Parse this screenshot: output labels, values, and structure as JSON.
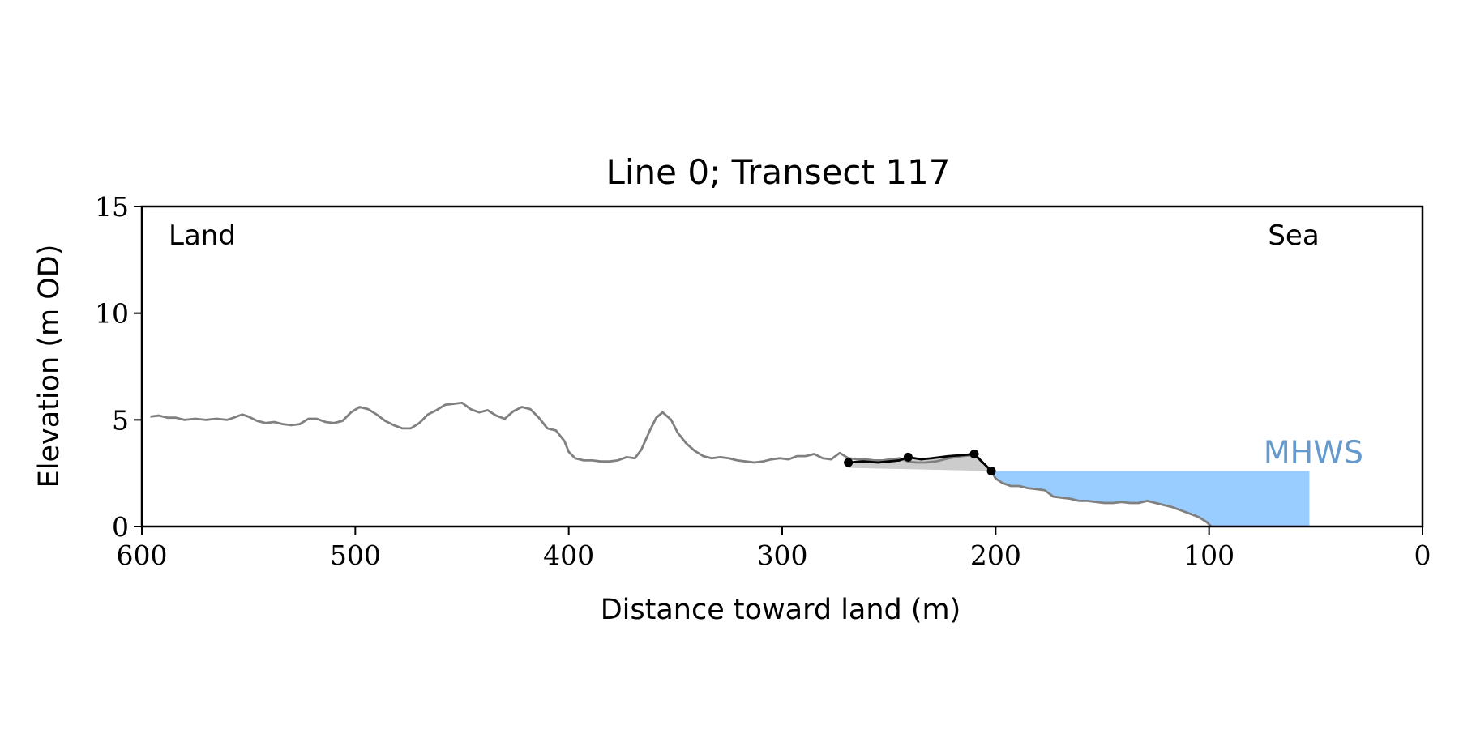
{
  "chart_data": {
    "type": "line",
    "title": "Line 0; Transect 117",
    "xlabel": "Distance toward land (m)",
    "ylabel": "Elevation (m OD)",
    "xlim": [
      600,
      0
    ],
    "ylim": [
      0,
      15
    ],
    "xticks": [
      "600",
      "500",
      "400",
      "300",
      "200",
      "100",
      "0"
    ],
    "yticks": [
      "0",
      "5",
      "10",
      "15"
    ],
    "grid": false,
    "annotations": {
      "land": "Land",
      "sea": "Sea",
      "mhws": "MHWS"
    },
    "mhws_level": 2.6,
    "mhws_x_extent": [
      203,
      53
    ],
    "colors": {
      "profile": "#808080",
      "feature": "#000000",
      "feature_fill": "#cccccc",
      "water": "#99ccff",
      "mhws_label": "#6699cc"
    },
    "profile": [
      [
        596,
        5.15
      ],
      [
        592,
        5.2
      ],
      [
        588,
        5.1
      ],
      [
        584,
        5.1
      ],
      [
        580,
        5.0
      ],
      [
        575,
        5.05
      ],
      [
        570,
        5.0
      ],
      [
        565,
        5.05
      ],
      [
        560,
        5.0
      ],
      [
        557,
        5.1
      ],
      [
        553,
        5.25
      ],
      [
        550,
        5.15
      ],
      [
        546,
        4.95
      ],
      [
        542,
        4.85
      ],
      [
        538,
        4.9
      ],
      [
        534,
        4.8
      ],
      [
        530,
        4.75
      ],
      [
        526,
        4.8
      ],
      [
        522,
        5.05
      ],
      [
        518,
        5.05
      ],
      [
        514,
        4.9
      ],
      [
        510,
        4.85
      ],
      [
        506,
        4.95
      ],
      [
        502,
        5.35
      ],
      [
        498,
        5.6
      ],
      [
        494,
        5.5
      ],
      [
        490,
        5.25
      ],
      [
        486,
        4.95
      ],
      [
        482,
        4.75
      ],
      [
        478,
        4.6
      ],
      [
        474,
        4.6
      ],
      [
        470,
        4.85
      ],
      [
        466,
        5.25
      ],
      [
        462,
        5.45
      ],
      [
        458,
        5.7
      ],
      [
        454,
        5.75
      ],
      [
        450,
        5.8
      ],
      [
        446,
        5.5
      ],
      [
        442,
        5.35
      ],
      [
        438,
        5.45
      ],
      [
        434,
        5.2
      ],
      [
        430,
        5.05
      ],
      [
        426,
        5.4
      ],
      [
        422,
        5.6
      ],
      [
        418,
        5.5
      ],
      [
        414,
        5.1
      ],
      [
        410,
        4.6
      ],
      [
        406,
        4.5
      ],
      [
        402,
        4.0
      ],
      [
        400,
        3.5
      ],
      [
        397,
        3.2
      ],
      [
        393,
        3.1
      ],
      [
        389,
        3.1
      ],
      [
        385,
        3.05
      ],
      [
        381,
        3.05
      ],
      [
        377,
        3.1
      ],
      [
        373,
        3.25
      ],
      [
        369,
        3.2
      ],
      [
        366,
        3.6
      ],
      [
        362,
        4.5
      ],
      [
        359,
        5.1
      ],
      [
        356,
        5.35
      ],
      [
        352,
        5.0
      ],
      [
        349,
        4.4
      ],
      [
        345,
        3.9
      ],
      [
        341,
        3.55
      ],
      [
        337,
        3.3
      ],
      [
        333,
        3.2
      ],
      [
        329,
        3.25
      ],
      [
        325,
        3.2
      ],
      [
        321,
        3.1
      ],
      [
        317,
        3.05
      ],
      [
        313,
        3.0
      ],
      [
        309,
        3.05
      ],
      [
        305,
        3.15
      ],
      [
        301,
        3.2
      ],
      [
        297,
        3.15
      ],
      [
        293,
        3.3
      ],
      [
        289,
        3.3
      ],
      [
        285,
        3.4
      ],
      [
        281,
        3.2
      ],
      [
        277,
        3.15
      ],
      [
        273,
        3.45
      ],
      [
        269,
        3.2
      ],
      [
        265,
        3.15
      ],
      [
        261,
        3.15
      ],
      [
        257,
        3.1
      ],
      [
        253,
        3.1
      ],
      [
        249,
        3.15
      ],
      [
        245,
        3.2
      ],
      [
        241,
        3.05
      ],
      [
        237,
        3.0
      ],
      [
        233,
        3.0
      ],
      [
        228,
        3.05
      ],
      [
        222,
        3.2
      ],
      [
        216,
        3.3
      ],
      [
        210,
        3.35
      ],
      [
        205,
        2.9
      ],
      [
        202,
        2.6
      ],
      [
        200,
        2.25
      ],
      [
        197,
        2.05
      ],
      [
        193,
        1.9
      ],
      [
        189,
        1.9
      ],
      [
        185,
        1.8
      ],
      [
        181,
        1.75
      ],
      [
        177,
        1.7
      ],
      [
        173,
        1.4
      ],
      [
        169,
        1.35
      ],
      [
        165,
        1.3
      ],
      [
        161,
        1.2
      ],
      [
        157,
        1.2
      ],
      [
        153,
        1.15
      ],
      [
        149,
        1.1
      ],
      [
        145,
        1.1
      ],
      [
        141,
        1.15
      ],
      [
        137,
        1.1
      ],
      [
        133,
        1.1
      ],
      [
        129,
        1.2
      ],
      [
        125,
        1.1
      ],
      [
        121,
        1.0
      ],
      [
        117,
        0.9
      ],
      [
        113,
        0.75
      ],
      [
        109,
        0.6
      ],
      [
        105,
        0.45
      ],
      [
        101,
        0.2
      ],
      [
        99,
        0.0
      ]
    ],
    "feature_line": [
      [
        269,
        3.0
      ],
      [
        262,
        3.05
      ],
      [
        255,
        3.0
      ],
      [
        250,
        3.05
      ],
      [
        245,
        3.1
      ],
      [
        241,
        3.25
      ],
      [
        235,
        3.15
      ],
      [
        230,
        3.2
      ],
      [
        222,
        3.3
      ],
      [
        215,
        3.35
      ],
      [
        210,
        3.4
      ],
      [
        206,
        3.0
      ],
      [
        202,
        2.6
      ]
    ],
    "feature_points": [
      [
        269,
        3.0
      ],
      [
        241,
        3.25
      ],
      [
        210,
        3.4
      ],
      [
        202,
        2.6
      ]
    ]
  }
}
